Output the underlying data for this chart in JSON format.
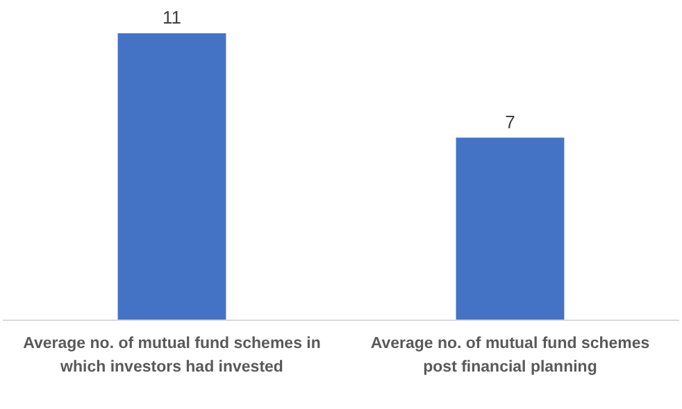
{
  "chart_data": {
    "type": "bar",
    "categories": [
      "Average no. of mutual fund schemes in which investors had invested",
      "Average no. of mutual fund schemes post financial planning"
    ],
    "values": [
      11,
      7
    ],
    "color": "#4472c4",
    "data_labels": true
  }
}
